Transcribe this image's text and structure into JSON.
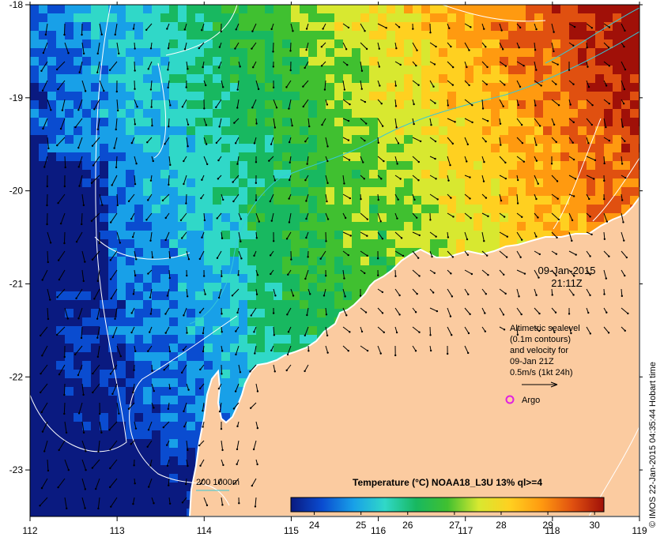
{
  "map": {
    "lon_ticks": [
      "112",
      "113",
      "114",
      "115",
      "116",
      "117",
      "118",
      "119"
    ],
    "lat_ticks": [
      "-18",
      "-19",
      "-20",
      "-21",
      "-22",
      "-23"
    ],
    "lon_range": [
      112,
      119
    ],
    "lat_range": [
      -23.5,
      -18
    ],
    "colors": {
      "land": "#fbcba0",
      "coast": "#ffffff",
      "contour": "#ffffff",
      "isobath": "#35c8d8",
      "argo": "#e020e0"
    }
  },
  "overlay": {
    "date": "09-Jan-2015",
    "time": "21:11Z",
    "legend_lines": [
      "Altimetric sealevel",
      "(0.1m contours)",
      "and velocity for",
      "09-Jan 21Z",
      "0.5m/s (1kt 24h)"
    ],
    "argo_label": "Argo",
    "isobath_label": "200  1000m",
    "side_credit": "© IMOS 22-Jan-2015 04:35:44 Hobart time"
  },
  "colorbar": {
    "title": "Temperature (°C) NOAA18_L3U 13% ql>=4",
    "ticks": [
      "24",
      "25",
      "26",
      "27",
      "28",
      "29",
      "30"
    ],
    "range": [
      23.5,
      30.2
    ],
    "stops": [
      "#0a1a80",
      "#0a4cd0",
      "#18a0e8",
      "#30d8c8",
      "#18b860",
      "#40c030",
      "#d8e830",
      "#ffd020",
      "#ff9a10",
      "#e05010",
      "#a01008"
    ]
  }
}
